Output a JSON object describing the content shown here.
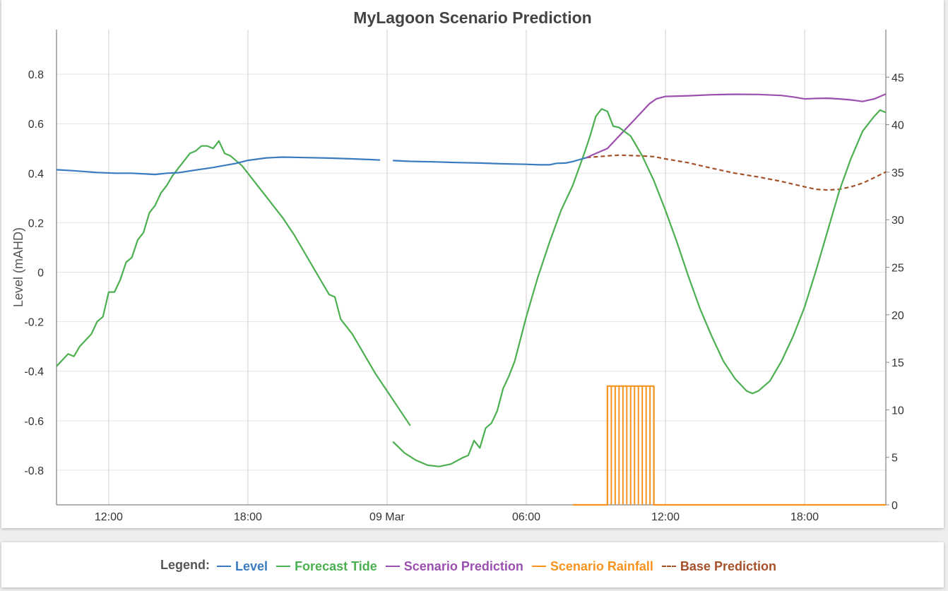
{
  "chart_data": {
    "type": "line",
    "title": "MyLagoon Scenario Prediction",
    "ylabel": "Level (mAHD)",
    "y2label": "",
    "ylim": [
      -0.94,
      0.98
    ],
    "y2lim": [
      0,
      50
    ],
    "yticks": [
      -0.8,
      -0.6,
      -0.4,
      -0.2,
      0,
      0.2,
      0.4,
      0.6,
      0.8
    ],
    "ytick_labels": [
      "-0.8",
      "-0.6",
      "-0.4",
      "-0.2",
      "0",
      "0.2",
      "0.4",
      "0.6",
      "0.8"
    ],
    "y2ticks": [
      0,
      5,
      10,
      15,
      20,
      25,
      30,
      35,
      40,
      45
    ],
    "y2tick_labels": [
      "0",
      "5",
      "10",
      "15",
      "20",
      "25",
      "30",
      "35",
      "40",
      "45"
    ],
    "xlim_hours": [
      9.75,
      45.5
    ],
    "xticks": [
      12,
      18,
      24,
      30,
      36,
      42
    ],
    "xtick_labels": [
      "12:00",
      "18:00",
      "09 Mar",
      "06:00",
      "12:00",
      "18:00"
    ],
    "grid": true,
    "legend_title": "Legend:",
    "series": [
      {
        "name": "Level",
        "color": "#3a7bbf",
        "axis": "left",
        "dash": false,
        "segments": [
          [
            [
              9.75,
              0.414
            ],
            [
              10.5,
              0.41
            ],
            [
              11.5,
              0.403
            ],
            [
              12.3,
              0.4
            ],
            [
              13,
              0.4
            ],
            [
              14,
              0.395
            ],
            [
              14.5,
              0.4
            ],
            [
              15,
              0.402
            ],
            [
              15.7,
              0.412
            ],
            [
              16.5,
              0.423
            ],
            [
              17.5,
              0.44
            ],
            [
              18,
              0.452
            ],
            [
              18.8,
              0.462
            ],
            [
              19.5,
              0.465
            ],
            [
              20.5,
              0.463
            ],
            [
              21.5,
              0.461
            ],
            [
              22.5,
              0.458
            ],
            [
              23.3,
              0.455
            ],
            [
              23.7,
              0.453
            ]
          ],
          [
            [
              24.25,
              0.451
            ],
            [
              25,
              0.448
            ],
            [
              26,
              0.446
            ],
            [
              27,
              0.443
            ],
            [
              28,
              0.441
            ],
            [
              29,
              0.438
            ],
            [
              30,
              0.436
            ],
            [
              30.6,
              0.434
            ],
            [
              31,
              0.434
            ],
            [
              31.3,
              0.44
            ],
            [
              31.7,
              0.441
            ],
            [
              32,
              0.447
            ],
            [
              32.3,
              0.455
            ],
            [
              32.6,
              0.463
            ]
          ]
        ]
      },
      {
        "name": "Forecast Tide",
        "color": "#4caf50",
        "axis": "left",
        "dash": false,
        "segments": [
          [
            [
              9.75,
              -0.38
            ],
            [
              10.25,
              -0.33
            ],
            [
              10.5,
              -0.34
            ],
            [
              10.75,
              -0.3
            ],
            [
              11.25,
              -0.25
            ],
            [
              11.5,
              -0.2
            ],
            [
              11.75,
              -0.18
            ],
            [
              12,
              -0.08
            ],
            [
              12.25,
              -0.08
            ],
            [
              12.5,
              -0.03
            ],
            [
              12.75,
              0.04
            ],
            [
              13,
              0.06
            ],
            [
              13.25,
              0.13
            ],
            [
              13.5,
              0.16
            ],
            [
              13.75,
              0.24
            ],
            [
              14,
              0.27
            ],
            [
              14.25,
              0.32
            ],
            [
              14.5,
              0.35
            ],
            [
              14.75,
              0.39
            ],
            [
              15,
              0.42
            ],
            [
              15.25,
              0.45
            ],
            [
              15.5,
              0.48
            ],
            [
              15.75,
              0.49
            ],
            [
              16,
              0.51
            ],
            [
              16.25,
              0.51
            ],
            [
              16.5,
              0.5
            ],
            [
              16.75,
              0.53
            ],
            [
              17,
              0.48
            ],
            [
              17.25,
              0.47
            ],
            [
              17.5,
              0.45
            ],
            [
              17.75,
              0.43
            ],
            [
              18,
              0.4
            ],
            [
              18.5,
              0.34
            ],
            [
              19,
              0.28
            ],
            [
              19.5,
              0.22
            ],
            [
              20,
              0.15
            ],
            [
              20.5,
              0.07
            ],
            [
              21,
              -0.01
            ],
            [
              21.5,
              -0.09
            ],
            [
              21.75,
              -0.1
            ],
            [
              22,
              -0.19
            ],
            [
              22.5,
              -0.25
            ],
            [
              23,
              -0.33
            ],
            [
              23.5,
              -0.41
            ],
            [
              24,
              -0.48
            ],
            [
              24.5,
              -0.55
            ],
            [
              25,
              -0.62
            ]
          ],
          [
            [
              24.25,
              -0.685
            ],
            [
              24.75,
              -0.73
            ],
            [
              25.25,
              -0.76
            ],
            [
              25.75,
              -0.78
            ],
            [
              26.25,
              -0.785
            ],
            [
              26.75,
              -0.775
            ],
            [
              27.25,
              -0.75
            ],
            [
              27.5,
              -0.74
            ],
            [
              27.75,
              -0.68
            ],
            [
              28,
              -0.71
            ],
            [
              28.25,
              -0.63
            ],
            [
              28.5,
              -0.61
            ],
            [
              28.75,
              -0.56
            ],
            [
              29,
              -0.47
            ],
            [
              29.25,
              -0.42
            ],
            [
              29.5,
              -0.36
            ],
            [
              29.75,
              -0.27
            ],
            [
              30,
              -0.18
            ],
            [
              30.5,
              -0.02
            ],
            [
              31,
              0.12
            ],
            [
              31.5,
              0.25
            ],
            [
              32,
              0.35
            ],
            [
              32.5,
              0.48
            ],
            [
              32.75,
              0.55
            ],
            [
              33,
              0.63
            ],
            [
              33.25,
              0.66
            ],
            [
              33.5,
              0.65
            ],
            [
              33.75,
              0.59
            ],
            [
              34,
              0.585
            ],
            [
              34.5,
              0.55
            ],
            [
              35,
              0.47
            ],
            [
              35.5,
              0.37
            ],
            [
              36,
              0.25
            ],
            [
              36.5,
              0.12
            ],
            [
              37,
              -0.02
            ],
            [
              37.5,
              -0.15
            ],
            [
              38,
              -0.26
            ],
            [
              38.5,
              -0.36
            ],
            [
              39,
              -0.43
            ],
            [
              39.5,
              -0.48
            ],
            [
              39.75,
              -0.49
            ],
            [
              40,
              -0.48
            ],
            [
              40.5,
              -0.44
            ],
            [
              41,
              -0.36
            ],
            [
              41.5,
              -0.26
            ],
            [
              42,
              -0.14
            ],
            [
              42.5,
              0.01
            ],
            [
              43,
              0.17
            ],
            [
              43.5,
              0.33
            ],
            [
              44,
              0.46
            ],
            [
              44.5,
              0.57
            ],
            [
              45,
              0.63
            ],
            [
              45.25,
              0.655
            ],
            [
              45.5,
              0.645
            ]
          ]
        ]
      },
      {
        "name": "Scenario Prediction",
        "color": "#9b4fae",
        "axis": "left",
        "dash": false,
        "segments": [
          [
            [
              32.6,
              0.463
            ],
            [
              33,
              0.48
            ],
            [
              33.5,
              0.5
            ],
            [
              34,
              0.55
            ],
            [
              34.5,
              0.6
            ],
            [
              35,
              0.65
            ],
            [
              35.3,
              0.68
            ],
            [
              35.6,
              0.7
            ],
            [
              36,
              0.71
            ],
            [
              37,
              0.713
            ],
            [
              38,
              0.717
            ],
            [
              39,
              0.719
            ],
            [
              40,
              0.718
            ],
            [
              41,
              0.714
            ],
            [
              41.5,
              0.708
            ],
            [
              42,
              0.7
            ],
            [
              42.5,
              0.702
            ],
            [
              43,
              0.703
            ],
            [
              43.5,
              0.7
            ],
            [
              44,
              0.696
            ],
            [
              44.5,
              0.69
            ],
            [
              45,
              0.7
            ],
            [
              45.5,
              0.72
            ]
          ]
        ]
      },
      {
        "name": "Base Prediction",
        "color": "#a5522a",
        "axis": "left",
        "dash": true,
        "segments": [
          [
            [
              32.6,
              0.463
            ],
            [
              33.5,
              0.47
            ],
            [
              34,
              0.473
            ],
            [
              35,
              0.47
            ],
            [
              35.5,
              0.467
            ],
            [
              36,
              0.458
            ],
            [
              37,
              0.442
            ],
            [
              38,
              0.42
            ],
            [
              39,
              0.4
            ],
            [
              40,
              0.385
            ],
            [
              41,
              0.367
            ],
            [
              42,
              0.345
            ],
            [
              42.5,
              0.335
            ],
            [
              43,
              0.332
            ],
            [
              43.5,
              0.335
            ],
            [
              44,
              0.345
            ],
            [
              44.5,
              0.36
            ],
            [
              45,
              0.382
            ],
            [
              45.5,
              0.405
            ]
          ]
        ]
      },
      {
        "name": "Scenario Rainfall",
        "color": "#f7931e",
        "axis": "right",
        "dash": false,
        "segments": [
          [
            [
              32,
              0
            ],
            [
              33.5,
              0
            ],
            [
              33.5,
              12.5
            ],
            [
              35.5,
              12.5
            ],
            [
              35.5,
              0
            ],
            [
              45.5,
              0
            ]
          ]
        ]
      }
    ]
  }
}
